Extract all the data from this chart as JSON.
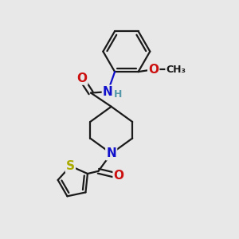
{
  "background_color": "#e8e8e8",
  "bond_color": "#1a1a1a",
  "bond_width": 1.6,
  "atom_colors": {
    "N": "#1010cc",
    "O": "#cc1010",
    "S": "#aaaa00",
    "H": "#5599aa",
    "C": "#1a1a1a"
  },
  "font_size_atom": 11,
  "font_size_h": 9,
  "font_size_ome": 9
}
